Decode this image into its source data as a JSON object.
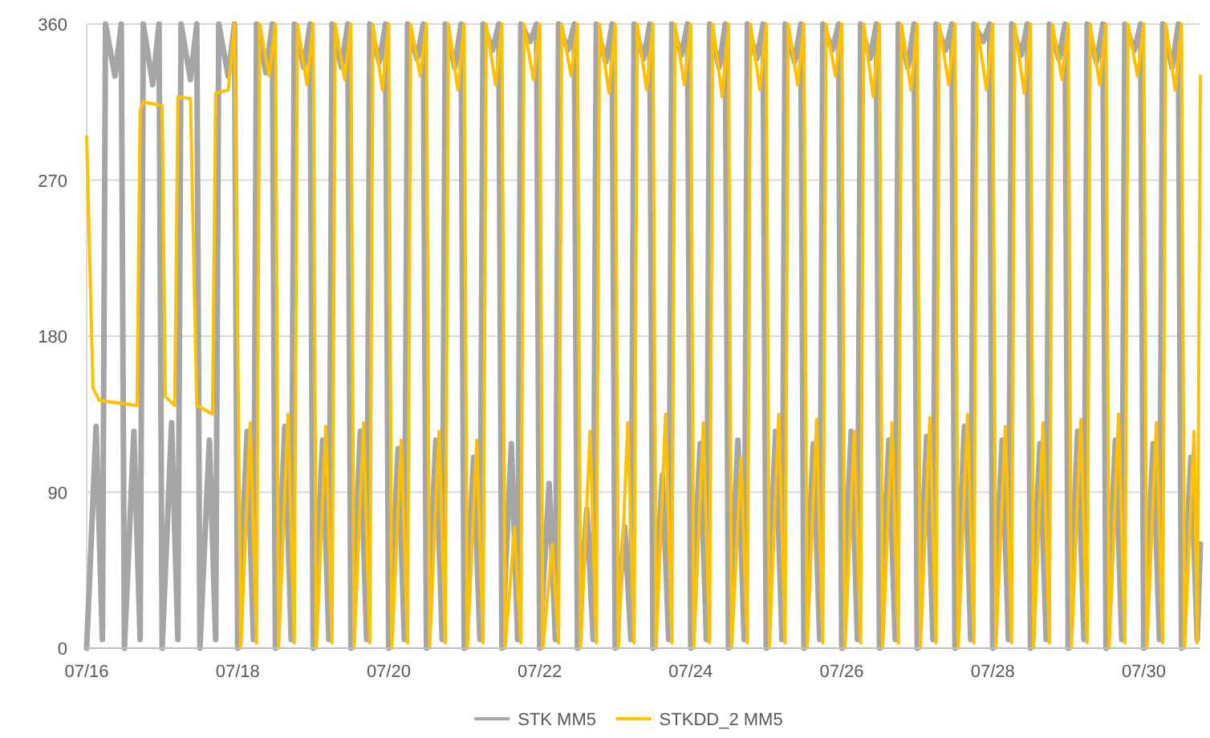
{
  "chart_data": {
    "type": "line",
    "xlim": [
      "--07-16T00:00",
      "--07-30T18:00"
    ],
    "xticks": [
      {
        "value": "--07-16",
        "label": "07/16"
      },
      {
        "value": "--07-18",
        "label": "07/18"
      },
      {
        "value": "--07-20",
        "label": "07/20"
      },
      {
        "value": "--07-22",
        "label": "07/22"
      },
      {
        "value": "--07-24",
        "label": "07/24"
      },
      {
        "value": "--07-26",
        "label": "07/26"
      },
      {
        "value": "--07-28",
        "label": "07/28"
      },
      {
        "value": "--07-30",
        "label": "07/30"
      }
    ],
    "ylim": [
      0,
      360
    ],
    "yticks": [
      0,
      90,
      180,
      270,
      360
    ],
    "grid": "y",
    "legend": "bottom",
    "marker": "none",
    "line_style": "solid",
    "series": [
      {
        "name": "STK MM5",
        "color": "#a5a5a5",
        "x": [
          "--07-16T00:00",
          "--07-16T03:00",
          "--07-16T05:00",
          "--07-16T06:00",
          "--07-16T09:00",
          "--07-16T11:00",
          "--07-16T12:00",
          "--07-16T15:00",
          "--07-16T17:00",
          "--07-16T18:00",
          "--07-16T21:00",
          "--07-16T23:00",
          "--07-17T00:00",
          "--07-17T03:00",
          "--07-17T05:00",
          "--07-17T06:00",
          "--07-17T09:00",
          "--07-17T11:00",
          "--07-17T12:00",
          "--07-17T15:00",
          "--07-17T17:00",
          "--07-17T18:00",
          "--07-17T21:00",
          "--07-17T23:00",
          "--07-18T00:00",
          "--07-18T03:00",
          "--07-18T05:00",
          "--07-18T06:00",
          "--07-18T09:00",
          "--07-18T11:00",
          "--07-18T12:00",
          "--07-18T15:00",
          "--07-18T17:00",
          "--07-18T18:00",
          "--07-18T21:00",
          "--07-18T23:00",
          "--07-19T00:00",
          "--07-19T03:00",
          "--07-19T05:00",
          "--07-19T06:00",
          "--07-19T09:00",
          "--07-19T11:00",
          "--07-19T12:00",
          "--07-19T15:00",
          "--07-19T17:00",
          "--07-19T18:00",
          "--07-19T21:00",
          "--07-19T23:00",
          "--07-20T00:00",
          "--07-20T03:00",
          "--07-20T05:00",
          "--07-20T06:00",
          "--07-20T09:00",
          "--07-20T11:00",
          "--07-20T12:00",
          "--07-20T15:00",
          "--07-20T17:00",
          "--07-20T18:00",
          "--07-20T21:00",
          "--07-20T23:00",
          "--07-21T00:00",
          "--07-21T03:00",
          "--07-21T05:00",
          "--07-21T06:00",
          "--07-21T09:00",
          "--07-21T11:00",
          "--07-21T12:00",
          "--07-21T15:00",
          "--07-21T17:00",
          "--07-21T18:00",
          "--07-21T21:00",
          "--07-21T23:00",
          "--07-22T00:00",
          "--07-22T03:00",
          "--07-22T05:00",
          "--07-22T06:00",
          "--07-22T09:00",
          "--07-22T11:00",
          "--07-22T12:00",
          "--07-22T15:00",
          "--07-22T17:00",
          "--07-22T18:00",
          "--07-22T21:00",
          "--07-22T23:00",
          "--07-23T00:00",
          "--07-23T03:00",
          "--07-23T05:00",
          "--07-23T06:00",
          "--07-23T09:00",
          "--07-23T11:00",
          "--07-23T12:00",
          "--07-23T15:00",
          "--07-23T17:00",
          "--07-23T18:00",
          "--07-23T21:00",
          "--07-23T23:00",
          "--07-24T00:00",
          "--07-24T03:00",
          "--07-24T05:00",
          "--07-24T06:00",
          "--07-24T09:00",
          "--07-24T11:00",
          "--07-24T12:00",
          "--07-24T15:00",
          "--07-24T17:00",
          "--07-24T18:00",
          "--07-24T21:00",
          "--07-24T23:00",
          "--07-25T00:00",
          "--07-25T03:00",
          "--07-25T05:00",
          "--07-25T06:00",
          "--07-25T09:00",
          "--07-25T11:00",
          "--07-25T12:00",
          "--07-25T15:00",
          "--07-25T17:00",
          "--07-25T18:00",
          "--07-25T21:00",
          "--07-25T23:00",
          "--07-26T00:00",
          "--07-26T03:00",
          "--07-26T05:00",
          "--07-26T06:00",
          "--07-26T09:00",
          "--07-26T11:00",
          "--07-26T12:00",
          "--07-26T15:00",
          "--07-26T17:00",
          "--07-26T18:00",
          "--07-26T21:00",
          "--07-26T23:00",
          "--07-27T00:00",
          "--07-27T03:00",
          "--07-27T05:00",
          "--07-27T06:00",
          "--07-27T09:00",
          "--07-27T11:00",
          "--07-27T12:00",
          "--07-27T15:00",
          "--07-27T17:00",
          "--07-27T18:00",
          "--07-27T21:00",
          "--07-27T23:00",
          "--07-28T00:00",
          "--07-28T03:00",
          "--07-28T05:00",
          "--07-28T06:00",
          "--07-28T09:00",
          "--07-28T11:00",
          "--07-28T12:00",
          "--07-28T15:00",
          "--07-28T17:00",
          "--07-28T18:00",
          "--07-28T21:00",
          "--07-28T23:00",
          "--07-29T00:00",
          "--07-29T03:00",
          "--07-29T05:00",
          "--07-29T06:00",
          "--07-29T09:00",
          "--07-29T11:00",
          "--07-29T12:00",
          "--07-29T15:00",
          "--07-29T17:00",
          "--07-29T18:00",
          "--07-29T21:00",
          "--07-29T23:00",
          "--07-30T00:00",
          "--07-30T03:00",
          "--07-30T05:00",
          "--07-30T06:00",
          "--07-30T09:00",
          "--07-30T11:00",
          "--07-30T12:00",
          "--07-30T15:00",
          "--07-30T17:00",
          "--07-30T18:00"
        ],
        "values": [
          0,
          128,
          5,
          360,
          330,
          360,
          0,
          125,
          5,
          360,
          325,
          360,
          0,
          130,
          5,
          360,
          328,
          360,
          0,
          120,
          5,
          360,
          330,
          360,
          0,
          125,
          5,
          360,
          332,
          360,
          0,
          128,
          5,
          360,
          335,
          360,
          0,
          120,
          5,
          360,
          335,
          360,
          0,
          125,
          5,
          360,
          338,
          360,
          0,
          115,
          5,
          360,
          340,
          360,
          0,
          120,
          5,
          360,
          335,
          360,
          0,
          110,
          5,
          360,
          345,
          360,
          0,
          118,
          5,
          360,
          350,
          360,
          0,
          95,
          5,
          360,
          345,
          360,
          0,
          80,
          5,
          360,
          338,
          360,
          0,
          70,
          5,
          360,
          340,
          360,
          0,
          100,
          5,
          360,
          342,
          360,
          0,
          118,
          5,
          360,
          335,
          360,
          0,
          120,
          5,
          360,
          340,
          360,
          0,
          125,
          5,
          360,
          338,
          360,
          0,
          118,
          5,
          360,
          345,
          360,
          0,
          125,
          5,
          360,
          340,
          360,
          0,
          120,
          5,
          360,
          335,
          360,
          0,
          122,
          5,
          360,
          345,
          360,
          0,
          128,
          5,
          360,
          350,
          360,
          0,
          120,
          5,
          360,
          342,
          360,
          0,
          118,
          5,
          360,
          340,
          360,
          0,
          125,
          5,
          360,
          338,
          360,
          0,
          120,
          5,
          360,
          345,
          360,
          0,
          118,
          5,
          360,
          335,
          360,
          0,
          110,
          5,
          60
        ]
      },
      {
        "name": "STKDD_2 MM5",
        "color": "#ffc000",
        "x": [
          "--07-16T00:00",
          "--07-16T02:00",
          "--07-16T04:00",
          "--07-16T16:00",
          "--07-16T17:00",
          "--07-16T18:00",
          "--07-17T00:00",
          "--07-17T01:00",
          "--07-17T04:00",
          "--07-17T05:00",
          "--07-17T09:00",
          "--07-17T11:00",
          "--07-17T16:00",
          "--07-17T17:00",
          "--07-17T21:00",
          "--07-17T23:00",
          "--07-18T01:00",
          "--07-18T04:00",
          "--07-18T06:00",
          "--07-18T07:00",
          "--07-18T10:00",
          "--07-18T12:00",
          "--07-18T13:00",
          "--07-18T16:00",
          "--07-18T18:00",
          "--07-18T19:00",
          "--07-18T22:00",
          "--07-19T00:00",
          "--07-19T01:00",
          "--07-19T04:00",
          "--07-19T06:00",
          "--07-19T07:00",
          "--07-19T10:00",
          "--07-19T12:00",
          "--07-19T13:00",
          "--07-19T16:00",
          "--07-19T18:00",
          "--07-19T19:00",
          "--07-19T22:00",
          "--07-20T00:00",
          "--07-20T01:00",
          "--07-20T04:00",
          "--07-20T06:00",
          "--07-20T07:00",
          "--07-20T10:00",
          "--07-20T12:00",
          "--07-20T13:00",
          "--07-20T16:00",
          "--07-20T18:00",
          "--07-20T19:00",
          "--07-20T22:00",
          "--07-21T00:00",
          "--07-21T01:00",
          "--07-21T04:00",
          "--07-21T06:00",
          "--07-21T07:00",
          "--07-21T10:00",
          "--07-21T12:00",
          "--07-21T13:00",
          "--07-21T16:00",
          "--07-21T18:00",
          "--07-21T19:00",
          "--07-21T22:00",
          "--07-22T00:00",
          "--07-22T01:00",
          "--07-22T04:00",
          "--07-22T06:00",
          "--07-22T07:00",
          "--07-22T10:00",
          "--07-22T12:00",
          "--07-22T13:00",
          "--07-22T16:00",
          "--07-22T18:00",
          "--07-22T19:00",
          "--07-22T22:00",
          "--07-23T00:00",
          "--07-23T01:00",
          "--07-23T04:00",
          "--07-23T06:00",
          "--07-23T07:00",
          "--07-23T10:00",
          "--07-23T12:00",
          "--07-23T13:00",
          "--07-23T16:00",
          "--07-23T18:00",
          "--07-23T19:00",
          "--07-23T22:00",
          "--07-24T00:00",
          "--07-24T01:00",
          "--07-24T04:00",
          "--07-24T06:00",
          "--07-24T07:00",
          "--07-24T10:00",
          "--07-24T12:00",
          "--07-24T13:00",
          "--07-24T16:00",
          "--07-24T18:00",
          "--07-24T19:00",
          "--07-24T22:00",
          "--07-25T00:00",
          "--07-25T01:00",
          "--07-25T04:00",
          "--07-25T06:00",
          "--07-25T07:00",
          "--07-25T10:00",
          "--07-25T12:00",
          "--07-25T13:00",
          "--07-25T16:00",
          "--07-25T18:00",
          "--07-25T19:00",
          "--07-25T22:00",
          "--07-26T00:00",
          "--07-26T01:00",
          "--07-26T04:00",
          "--07-26T06:00",
          "--07-26T07:00",
          "--07-26T10:00",
          "--07-26T12:00",
          "--07-26T13:00",
          "--07-26T16:00",
          "--07-26T18:00",
          "--07-26T19:00",
          "--07-26T22:00",
          "--07-27T00:00",
          "--07-27T01:00",
          "--07-27T04:00",
          "--07-27T06:00",
          "--07-27T07:00",
          "--07-27T10:00",
          "--07-27T12:00",
          "--07-27T13:00",
          "--07-27T16:00",
          "--07-27T18:00",
          "--07-27T19:00",
          "--07-27T22:00",
          "--07-28T00:00",
          "--07-28T01:00",
          "--07-28T04:00",
          "--07-28T06:00",
          "--07-28T07:00",
          "--07-28T10:00",
          "--07-28T12:00",
          "--07-28T13:00",
          "--07-28T16:00",
          "--07-28T18:00",
          "--07-28T19:00",
          "--07-28T22:00",
          "--07-29T00:00",
          "--07-29T01:00",
          "--07-29T04:00",
          "--07-29T06:00",
          "--07-29T07:00",
          "--07-29T10:00",
          "--07-29T12:00",
          "--07-29T13:00",
          "--07-29T16:00",
          "--07-29T18:00",
          "--07-29T19:00",
          "--07-29T22:00",
          "--07-30T00:00",
          "--07-30T01:00",
          "--07-30T04:00",
          "--07-30T06:00",
          "--07-30T07:00",
          "--07-30T10:00",
          "--07-30T12:00",
          "--07-30T13:00",
          "--07-30T16:00",
          "--07-30T17:00",
          "--07-30T18:00"
        ],
        "values": [
          295,
          150,
          143,
          140,
          310,
          315,
          313,
          145,
          140,
          318,
          317,
          140,
          135,
          320,
          322,
          360,
          0,
          130,
          3,
          360,
          330,
          360,
          0,
          135,
          3,
          360,
          325,
          360,
          0,
          128,
          3,
          360,
          328,
          360,
          0,
          130,
          3,
          360,
          322,
          360,
          0,
          120,
          3,
          360,
          330,
          360,
          0,
          125,
          3,
          360,
          322,
          360,
          0,
          120,
          3,
          360,
          325,
          360,
          0,
          70,
          3,
          360,
          328,
          360,
          0,
          60,
          3,
          360,
          330,
          360,
          0,
          125,
          3,
          360,
          320,
          360,
          0,
          130,
          3,
          360,
          322,
          360,
          0,
          135,
          3,
          360,
          325,
          360,
          0,
          130,
          3,
          360,
          318,
          360,
          0,
          110,
          3,
          360,
          322,
          360,
          0,
          135,
          3,
          360,
          325,
          360,
          0,
          132,
          3,
          360,
          330,
          360,
          0,
          125,
          3,
          360,
          318,
          360,
          0,
          130,
          3,
          360,
          322,
          360,
          0,
          133,
          3,
          360,
          325,
          360,
          0,
          135,
          3,
          360,
          322,
          360,
          0,
          128,
          3,
          360,
          320,
          360,
          0,
          130,
          3,
          360,
          328,
          360,
          0,
          132,
          3,
          360,
          325,
          360,
          0,
          135,
          3,
          360,
          330,
          360,
          0,
          130,
          3,
          360,
          322,
          360,
          0,
          125,
          3,
          330
        ]
      }
    ]
  }
}
